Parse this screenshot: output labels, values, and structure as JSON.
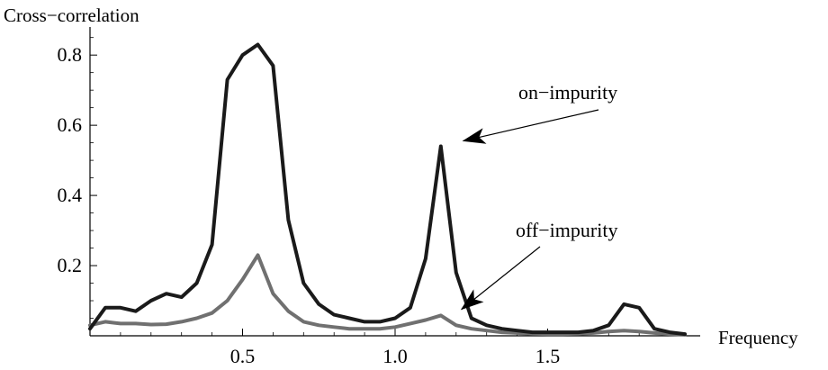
{
  "chart_data": {
    "type": "line",
    "xlabel": "Frequency",
    "ylabel": "Cross−correlation",
    "xlim": [
      0.0,
      2.0
    ],
    "ylim": [
      0.0,
      0.88
    ],
    "x_ticks": [
      {
        "value": 0.5,
        "label": "0.5"
      },
      {
        "value": 1.0,
        "label": "1.0"
      },
      {
        "value": 1.5,
        "label": "1.5"
      }
    ],
    "y_ticks": [
      {
        "value": 0.2,
        "label": "0.2"
      },
      {
        "value": 0.4,
        "label": "0.4"
      },
      {
        "value": 0.6,
        "label": "0.6"
      },
      {
        "value": 0.8,
        "label": "0.8"
      }
    ],
    "grid": false,
    "series": [
      {
        "name": "on−impurity",
        "color": "#1a1a1a",
        "x": [
          0.0,
          0.05,
          0.1,
          0.15,
          0.2,
          0.25,
          0.3,
          0.35,
          0.4,
          0.45,
          0.5,
          0.55,
          0.6,
          0.65,
          0.7,
          0.75,
          0.8,
          0.85,
          0.9,
          0.95,
          1.0,
          1.05,
          1.1,
          1.15,
          1.2,
          1.25,
          1.3,
          1.35,
          1.4,
          1.45,
          1.5,
          1.55,
          1.6,
          1.65,
          1.7,
          1.75,
          1.8,
          1.85,
          1.9,
          1.95
        ],
        "y": [
          0.02,
          0.08,
          0.08,
          0.07,
          0.1,
          0.12,
          0.11,
          0.15,
          0.26,
          0.73,
          0.8,
          0.83,
          0.77,
          0.33,
          0.15,
          0.09,
          0.06,
          0.05,
          0.04,
          0.04,
          0.05,
          0.08,
          0.22,
          0.54,
          0.18,
          0.05,
          0.03,
          0.02,
          0.015,
          0.01,
          0.01,
          0.01,
          0.01,
          0.015,
          0.03,
          0.09,
          0.08,
          0.02,
          0.01,
          0.005
        ]
      },
      {
        "name": "off−impurity",
        "color": "#707070",
        "x": [
          0.0,
          0.05,
          0.1,
          0.15,
          0.2,
          0.25,
          0.3,
          0.35,
          0.4,
          0.45,
          0.5,
          0.55,
          0.6,
          0.65,
          0.7,
          0.75,
          0.8,
          0.85,
          0.9,
          0.95,
          1.0,
          1.05,
          1.1,
          1.15,
          1.2,
          1.25,
          1.3,
          1.35,
          1.4,
          1.45,
          1.5,
          1.55,
          1.6,
          1.65,
          1.7,
          1.75,
          1.8,
          1.85,
          1.9,
          1.95
        ],
        "y": [
          0.03,
          0.04,
          0.035,
          0.035,
          0.032,
          0.033,
          0.04,
          0.05,
          0.065,
          0.1,
          0.16,
          0.23,
          0.12,
          0.07,
          0.04,
          0.03,
          0.025,
          0.02,
          0.02,
          0.02,
          0.025,
          0.035,
          0.045,
          0.058,
          0.03,
          0.02,
          0.015,
          0.01,
          0.008,
          0.006,
          0.005,
          0.005,
          0.006,
          0.008,
          0.012,
          0.015,
          0.012,
          0.008,
          0.005,
          0.003
        ]
      }
    ],
    "annotations": [
      {
        "text": "on−impurity",
        "points_to": {
          "x": 1.2,
          "y": 0.54
        }
      },
      {
        "text": "off−impurity",
        "points_to": {
          "x": 1.2,
          "y": 0.06
        }
      }
    ]
  }
}
